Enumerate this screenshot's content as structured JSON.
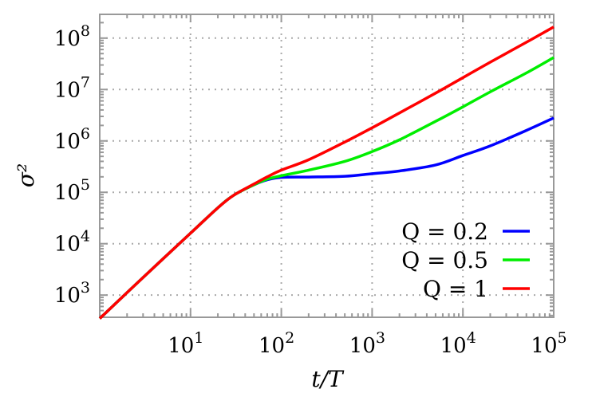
{
  "chart_data": {
    "type": "line",
    "xlabel": "t/T",
    "ylabel": "σ²",
    "xscale": "log",
    "yscale": "log",
    "xlim": [
      1,
      100000
    ],
    "ylim": [
      370,
      290000000
    ],
    "grid": true,
    "legend_position": "bottom-right",
    "x_ticks": [
      {
        "base": "10",
        "exp": "1",
        "value": 10
      },
      {
        "base": "10",
        "exp": "2",
        "value": 100
      },
      {
        "base": "10",
        "exp": "3",
        "value": 1000
      },
      {
        "base": "10",
        "exp": "4",
        "value": 10000
      },
      {
        "base": "10",
        "exp": "5",
        "value": 100000
      }
    ],
    "y_ticks": [
      {
        "base": "10",
        "exp": "3",
        "value": 1000
      },
      {
        "base": "10",
        "exp": "4",
        "value": 10000
      },
      {
        "base": "10",
        "exp": "5",
        "value": 100000
      },
      {
        "base": "10",
        "exp": "6",
        "value": 1000000
      },
      {
        "base": "10",
        "exp": "7",
        "value": 10000000
      },
      {
        "base": "10",
        "exp": "8",
        "value": 100000000
      }
    ],
    "series": [
      {
        "name": "Q = 0.2",
        "color": "#0000ff",
        "x": [
          1,
          3,
          10,
          20,
          30,
          50,
          70,
          100,
          200,
          500,
          1000,
          2000,
          5000,
          10000,
          20000,
          50000,
          100000
        ],
        "y": [
          350,
          2200,
          16000,
          50000,
          88000,
          140000,
          175000,
          195000,
          198000,
          205000,
          230000,
          260000,
          340000,
          520000,
          800000,
          1600000,
          2800000
        ]
      },
      {
        "name": "Q = 0.5",
        "color": "#00ee00",
        "x": [
          1,
          3,
          10,
          20,
          30,
          50,
          70,
          100,
          200,
          500,
          1000,
          2000,
          5000,
          10000,
          20000,
          50000,
          100000
        ],
        "y": [
          350,
          2200,
          16000,
          50000,
          88000,
          140000,
          180000,
          210000,
          270000,
          400000,
          620000,
          1050000,
          2400000,
          4600000,
          9000000,
          21000000,
          42000000
        ]
      },
      {
        "name": "Q = 1",
        "color": "#ff0000",
        "x": [
          1,
          3,
          10,
          20,
          30,
          50,
          70,
          100,
          200,
          500,
          1000,
          2000,
          5000,
          10000,
          20000,
          50000,
          100000
        ],
        "y": [
          350,
          2200,
          16000,
          50000,
          88000,
          145000,
          200000,
          270000,
          430000,
          950000,
          1800000,
          3500000,
          8500000,
          17000000,
          34000000,
          83000000,
          165000000
        ]
      }
    ]
  }
}
